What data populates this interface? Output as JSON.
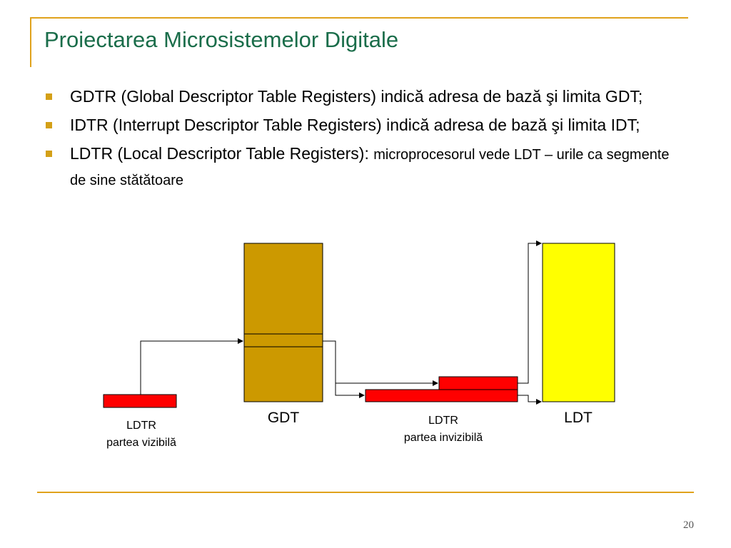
{
  "colors": {
    "frame": "#e0a21c",
    "title": "#1a6d4a",
    "bullet": "#d4a017",
    "gdt_fill": "#cc9900",
    "ldt_fill": "#ffff00",
    "ldtr_fill": "#ff0000"
  },
  "title": "Proiectarea Microsistemelor Digitale",
  "bullets": [
    {
      "text": "GDTR (Global Descriptor Table Registers) indică adresa de bază şi limita GDT;"
    },
    {
      "text": "IDTR (Interrupt Descriptor Table Registers) indică adresa de bază şi limita IDT;"
    },
    {
      "text": "LDTR (Local Descriptor Table Registers): ",
      "small_text": "microprocesorul vede LDT – urile ca segmente de sine stătătoare"
    }
  ],
  "diagram": {
    "gdt_label": "GDT",
    "ldt_label": "LDT",
    "ldtr_visible_label": [
      "LDTR",
      "partea vizibilă"
    ],
    "ldtr_invisible_label": [
      "LDTR",
      "partea invizibilă"
    ]
  },
  "page_number": "20"
}
